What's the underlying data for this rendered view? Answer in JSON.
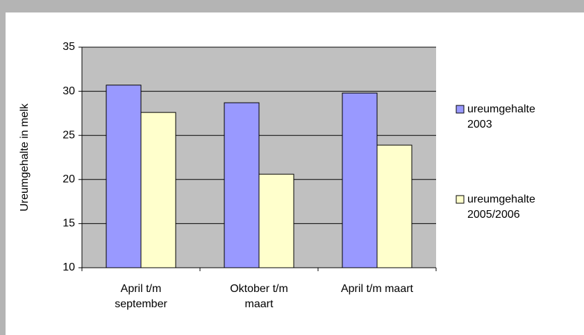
{
  "chart_data": {
    "type": "bar",
    "y_label": "Ureumgehalte in melk",
    "categories": [
      "April t/m september",
      "Oktober t/m maart",
      "April t/m maart"
    ],
    "series": [
      {
        "name": "ureumgehalte 2003",
        "color": "#9999ff",
        "values": [
          30.7,
          28.7,
          29.8
        ]
      },
      {
        "name": "ureumgehalte 2005/2006",
        "color": "#ffffcc",
        "values": [
          27.6,
          20.6,
          23.9
        ]
      }
    ],
    "ylim": [
      10,
      35
    ],
    "yticks": [
      10,
      15,
      20,
      25,
      30,
      35
    ],
    "grid": true,
    "legend": "right"
  }
}
